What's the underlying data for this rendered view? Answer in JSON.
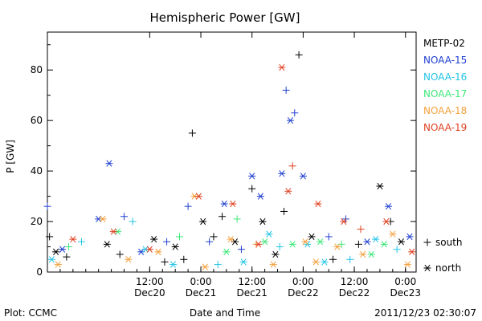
{
  "chart_data": {
    "type": "scatter",
    "title": "Hemispheric Power [GW]",
    "ylabel": "P [GW]",
    "xlabel": "Date and Time",
    "xlim": [
      "2011-12-19T12:00",
      "2011-12-23T02:30"
    ],
    "ylim": [
      0,
      95
    ],
    "yticks": [
      0,
      20,
      40,
      60,
      80
    ],
    "xticks": [
      {
        "time": "2011-12-20T12:00",
        "label": "12:00",
        "day": "Dec20"
      },
      {
        "time": "2011-12-21T00:00",
        "label": "0:00",
        "day": "Dec21"
      },
      {
        "time": "2011-12-21T12:00",
        "label": "12:00",
        "day": "Dec21"
      },
      {
        "time": "2011-12-22T00:00",
        "label": "0:00",
        "day": "Dec22"
      },
      {
        "time": "2011-12-22T12:00",
        "label": "12:00",
        "day": "Dec22"
      },
      {
        "time": "2011-12-23T00:00",
        "label": "0:00",
        "day": "Dec23"
      }
    ],
    "grid": false,
    "legend_position": "right",
    "series": [
      {
        "name": "METP-02",
        "color": "#000000",
        "points": [
          {
            "t": "2011-12-19T12:30",
            "v": 14,
            "m": "+"
          },
          {
            "t": "2011-12-19T14:00",
            "v": 8,
            "m": "*"
          },
          {
            "t": "2011-12-19T16:30",
            "v": 6,
            "m": "+"
          },
          {
            "t": "2011-12-20T02:00",
            "v": 11,
            "m": "*"
          },
          {
            "t": "2011-12-20T05:00",
            "v": 7,
            "m": "+"
          },
          {
            "t": "2011-12-20T13:00",
            "v": 13,
            "m": "*"
          },
          {
            "t": "2011-12-20T15:30",
            "v": 4,
            "m": "+"
          },
          {
            "t": "2011-12-20T18:00",
            "v": 10,
            "m": "*"
          },
          {
            "t": "2011-12-20T20:00",
            "v": 5,
            "m": "+"
          },
          {
            "t": "2011-12-20T22:00",
            "v": 55,
            "m": "+"
          },
          {
            "t": "2011-12-21T00:30",
            "v": 20,
            "m": "*"
          },
          {
            "t": "2011-12-21T03:00",
            "v": 14,
            "m": "+"
          },
          {
            "t": "2011-12-21T05:00",
            "v": 22,
            "m": "+"
          },
          {
            "t": "2011-12-21T08:00",
            "v": 12,
            "m": "*"
          },
          {
            "t": "2011-12-21T12:00",
            "v": 33,
            "m": "+"
          },
          {
            "t": "2011-12-21T14:30",
            "v": 20,
            "m": "*"
          },
          {
            "t": "2011-12-21T17:30",
            "v": 7,
            "m": "*"
          },
          {
            "t": "2011-12-21T19:30",
            "v": 24,
            "m": "+"
          },
          {
            "t": "2011-12-21T23:00",
            "v": 86,
            "m": "+"
          },
          {
            "t": "2011-12-22T02:00",
            "v": 14,
            "m": "*"
          },
          {
            "t": "2011-12-22T07:00",
            "v": 5,
            "m": "+"
          },
          {
            "t": "2011-12-22T13:00",
            "v": 11,
            "m": "+"
          },
          {
            "t": "2011-12-22T18:00",
            "v": 34,
            "m": "*"
          },
          {
            "t": "2011-12-22T20:30",
            "v": 20,
            "m": "+"
          },
          {
            "t": "2011-12-22T23:00",
            "v": 12,
            "m": "*"
          }
        ]
      },
      {
        "name": "NOAA-15",
        "color": "#1f3fd0",
        "points": [
          {
            "t": "2011-12-19T12:00",
            "v": 26,
            "m": "+"
          },
          {
            "t": "2011-12-19T15:30",
            "v": 9,
            "m": "*"
          },
          {
            "t": "2011-12-20T00:00",
            "v": 21,
            "m": "*"
          },
          {
            "t": "2011-12-20T02:30",
            "v": 43,
            "m": "*"
          },
          {
            "t": "2011-12-20T06:00",
            "v": 22,
            "m": "+"
          },
          {
            "t": "2011-12-20T10:00",
            "v": 8,
            "m": "*"
          },
          {
            "t": "2011-12-20T16:00",
            "v": 12,
            "m": "+"
          },
          {
            "t": "2011-12-20T21:00",
            "v": 26,
            "m": "+"
          },
          {
            "t": "2011-12-21T02:00",
            "v": 12,
            "m": "+"
          },
          {
            "t": "2011-12-21T05:30",
            "v": 27,
            "m": "*"
          },
          {
            "t": "2011-12-21T09:30",
            "v": 9,
            "m": "+"
          },
          {
            "t": "2011-12-21T12:00",
            "v": 38,
            "m": "*"
          },
          {
            "t": "2011-12-21T14:00",
            "v": 30,
            "m": "*"
          },
          {
            "t": "2011-12-21T19:00",
            "v": 39,
            "m": "*"
          },
          {
            "t": "2011-12-21T20:00",
            "v": 72,
            "m": "+"
          },
          {
            "t": "2011-12-21T21:00",
            "v": 60,
            "m": "*"
          },
          {
            "t": "2011-12-21T22:00",
            "v": 63,
            "m": "+"
          },
          {
            "t": "2011-12-22T00:00",
            "v": 38,
            "m": "*"
          },
          {
            "t": "2011-12-22T06:00",
            "v": 14,
            "m": "+"
          },
          {
            "t": "2011-12-22T10:00",
            "v": 21,
            "m": "+"
          },
          {
            "t": "2011-12-22T15:00",
            "v": 12,
            "m": "*"
          },
          {
            "t": "2011-12-22T20:00",
            "v": 26,
            "m": "*"
          },
          {
            "t": "2011-12-23T01:00",
            "v": 14,
            "m": "*"
          }
        ]
      },
      {
        "name": "NOAA-16",
        "color": "#22c4e8",
        "points": [
          {
            "t": "2011-12-19T13:00",
            "v": 5,
            "m": "*"
          },
          {
            "t": "2011-12-19T20:00",
            "v": 12,
            "m": "+"
          },
          {
            "t": "2011-12-20T08:00",
            "v": 20,
            "m": "+"
          },
          {
            "t": "2011-12-20T11:00",
            "v": 9,
            "m": "*"
          },
          {
            "t": "2011-12-20T17:30",
            "v": 3,
            "m": "*"
          },
          {
            "t": "2011-12-21T04:00",
            "v": 3,
            "m": "+"
          },
          {
            "t": "2011-12-21T10:00",
            "v": 4,
            "m": "*"
          },
          {
            "t": "2011-12-21T16:00",
            "v": 15,
            "m": "*"
          },
          {
            "t": "2011-12-21T18:30",
            "v": 10,
            "m": "+"
          },
          {
            "t": "2011-12-22T01:00",
            "v": 11,
            "m": "*"
          },
          {
            "t": "2011-12-22T05:00",
            "v": 4,
            "m": "*"
          },
          {
            "t": "2011-12-22T11:00",
            "v": 5,
            "m": "+"
          },
          {
            "t": "2011-12-22T17:00",
            "v": 13,
            "m": "*"
          },
          {
            "t": "2011-12-22T22:00",
            "v": 9,
            "m": "+"
          }
        ]
      },
      {
        "name": "NOAA-17",
        "color": "#3ce878",
        "points": [
          {
            "t": "2011-12-19T17:00",
            "v": 10,
            "m": "+"
          },
          {
            "t": "2011-12-20T04:30",
            "v": 16,
            "m": "*"
          },
          {
            "t": "2011-12-20T19:00",
            "v": 14,
            "m": "+"
          },
          {
            "t": "2011-12-21T06:00",
            "v": 8,
            "m": "*"
          },
          {
            "t": "2011-12-21T08:30",
            "v": 21,
            "m": "+"
          },
          {
            "t": "2011-12-21T15:00",
            "v": 12,
            "m": "*"
          },
          {
            "t": "2011-12-21T21:30",
            "v": 11,
            "m": "*"
          },
          {
            "t": "2011-12-22T04:00",
            "v": 12,
            "m": "*"
          },
          {
            "t": "2011-12-22T09:00",
            "v": 11,
            "m": "+"
          },
          {
            "t": "2011-12-22T16:00",
            "v": 7,
            "m": "*"
          },
          {
            "t": "2011-12-22T19:00",
            "v": 11,
            "m": "*"
          }
        ]
      },
      {
        "name": "NOAA-18",
        "color": "#f5a03c",
        "points": [
          {
            "t": "2011-12-19T14:30",
            "v": 3,
            "m": "*"
          },
          {
            "t": "2011-12-20T01:00",
            "v": 21,
            "m": "*"
          },
          {
            "t": "2011-12-20T07:00",
            "v": 5,
            "m": "*"
          },
          {
            "t": "2011-12-20T14:00",
            "v": 8,
            "m": "*"
          },
          {
            "t": "2011-12-20T22:30",
            "v": 30,
            "m": "*"
          },
          {
            "t": "2011-12-21T01:00",
            "v": 2,
            "m": "*"
          },
          {
            "t": "2011-12-21T07:00",
            "v": 13,
            "m": "*"
          },
          {
            "t": "2011-12-21T13:00",
            "v": 11,
            "m": "+"
          },
          {
            "t": "2011-12-21T17:00",
            "v": 3,
            "m": "*"
          },
          {
            "t": "2011-12-22T00:30",
            "v": 12,
            "m": "*"
          },
          {
            "t": "2011-12-22T03:00",
            "v": 4,
            "m": "*"
          },
          {
            "t": "2011-12-22T08:00",
            "v": 10,
            "m": "*"
          },
          {
            "t": "2011-12-22T14:00",
            "v": 7,
            "m": "*"
          },
          {
            "t": "2011-12-22T21:00",
            "v": 15,
            "m": "*"
          },
          {
            "t": "2011-12-23T00:30",
            "v": 3,
            "m": "*"
          }
        ]
      },
      {
        "name": "NOAA-19",
        "color": "#e04020",
        "points": [
          {
            "t": "2011-12-19T18:00",
            "v": 13,
            "m": "*"
          },
          {
            "t": "2011-12-20T03:30",
            "v": 16,
            "m": "*"
          },
          {
            "t": "2011-12-20T12:00",
            "v": 9,
            "m": "*"
          },
          {
            "t": "2011-12-20T23:30",
            "v": 30,
            "m": "*"
          },
          {
            "t": "2011-12-21T07:30",
            "v": 27,
            "m": "*"
          },
          {
            "t": "2011-12-21T13:30",
            "v": 11,
            "m": "*"
          },
          {
            "t": "2011-12-21T19:00",
            "v": 81,
            "m": "*"
          },
          {
            "t": "2011-12-21T21:30",
            "v": 42,
            "m": "+"
          },
          {
            "t": "2011-12-21T20:30",
            "v": 32,
            "m": "*"
          },
          {
            "t": "2011-12-22T03:30",
            "v": 27,
            "m": "*"
          },
          {
            "t": "2011-12-22T09:30",
            "v": 20,
            "m": "*"
          },
          {
            "t": "2011-12-22T13:30",
            "v": 17,
            "m": "+"
          },
          {
            "t": "2011-12-22T19:30",
            "v": 20,
            "m": "*"
          },
          {
            "t": "2011-12-23T01:30",
            "v": 8,
            "m": "*"
          }
        ]
      }
    ],
    "marker_legend": [
      {
        "symbol": "+",
        "label": "south"
      },
      {
        "symbol": "*",
        "label": "north"
      }
    ]
  },
  "footer": {
    "plot_credit": "Plot: CCMC",
    "timestamp": "2011/12/23 02:30:07"
  }
}
